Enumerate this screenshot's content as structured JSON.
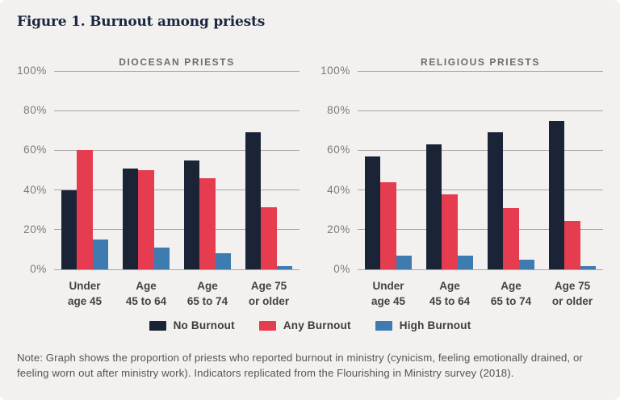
{
  "figure": {
    "title": "Figure 1. Burnout among priests",
    "note": "Note: Graph shows the proportion of priests who reported burnout in ministry (cynicism, feeling emotionally drained, or feeling worn out after ministry work). Indicators replicated from the Flourishing in Ministry survey (2018)."
  },
  "colors": {
    "background": "#f2f1ef",
    "title_navy": "#1b2740",
    "no_burnout": "#1b2437",
    "any_burnout": "#e63c4f",
    "high_burnout": "#3e7bb1",
    "gridline": "#a9a7a4",
    "axis_tick_label": "#7c7a77",
    "chart_title": "#6f6d6b",
    "x_label": "#454240",
    "legend_label": "#3e3c3a",
    "note_text": "#57554f"
  },
  "legend": {
    "items": [
      {
        "label": "No Burnout",
        "color_key": "no_burnout"
      },
      {
        "label": "Any Burnout",
        "color_key": "any_burnout"
      },
      {
        "label": "High Burnout",
        "color_key": "high_burnout"
      }
    ],
    "position": "bottom-center"
  },
  "chart_data": [
    {
      "type": "bar",
      "title": "DIOCESAN PRIESTS",
      "categories": [
        [
          "Under",
          "age 45"
        ],
        [
          "Age",
          "45 to 64"
        ],
        [
          "Age",
          "65 to 74"
        ],
        [
          "Age 75",
          "or older"
        ]
      ],
      "series": [
        {
          "name": "No Burnout",
          "color_key": "no_burnout",
          "values": [
            40,
            51,
            55,
            69
          ]
        },
        {
          "name": "Any Burnout",
          "color_key": "any_burnout",
          "values": [
            60,
            50,
            46,
            31.5
          ]
        },
        {
          "name": "High Burnout",
          "color_key": "high_burnout",
          "values": [
            15,
            11,
            8,
            1.5
          ]
        }
      ],
      "ylabel": "",
      "xlabel": "",
      "ylim": [
        0,
        100
      ],
      "yticks": [
        "0%",
        "20%",
        "40%",
        "60%",
        "80%",
        "100%"
      ],
      "ytick_values": [
        0,
        20,
        40,
        60,
        80,
        100
      ],
      "grid": true
    },
    {
      "type": "bar",
      "title": "RELIGIOUS PRIESTS",
      "categories": [
        [
          "Under",
          "age 45"
        ],
        [
          "Age",
          "45 to 64"
        ],
        [
          "Age",
          "65 to 74"
        ],
        [
          "Age 75",
          "or older"
        ]
      ],
      "series": [
        {
          "name": "No Burnout",
          "color_key": "no_burnout",
          "values": [
            57,
            63,
            69,
            75
          ]
        },
        {
          "name": "Any Burnout",
          "color_key": "any_burnout",
          "values": [
            44,
            38,
            31,
            24.5
          ]
        },
        {
          "name": "High Burnout",
          "color_key": "high_burnout",
          "values": [
            7,
            7,
            5,
            1.5
          ]
        }
      ],
      "ylabel": "",
      "xlabel": "",
      "ylim": [
        0,
        100
      ],
      "yticks": [
        "0%",
        "20%",
        "40%",
        "60%",
        "80%",
        "100%"
      ],
      "ytick_values": [
        0,
        20,
        40,
        60,
        80,
        100
      ],
      "grid": true
    }
  ]
}
